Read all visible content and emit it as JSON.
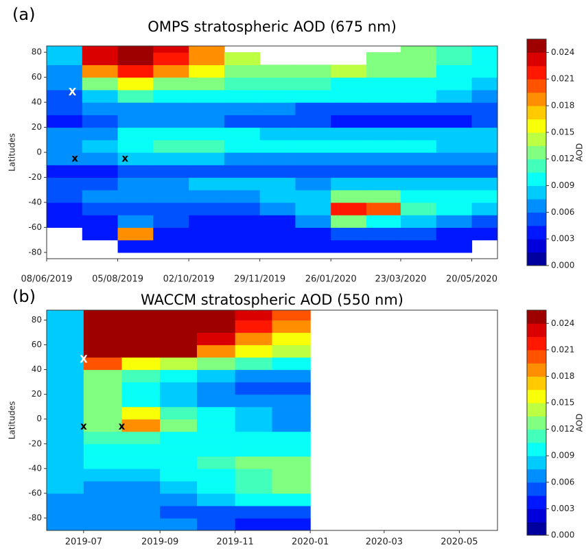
{
  "chart_data": [
    {
      "type": "heatmap",
      "panel_label": "(a)",
      "title": "OMPS stratospheric AOD (675 nm)",
      "ylabel": "Latitudes",
      "x": [
        "08/06/2019",
        "07/07/2019",
        "05/08/2019",
        "03/09/2019",
        "02/10/2019",
        "31/10/2019",
        "29/11/2019",
        "28/12/2019",
        "26/01/2020",
        "24/02/2020",
        "23/03/2020",
        "21/04/2020",
        "20/05/2020"
      ],
      "y": [
        -85,
        -75,
        -65,
        -55,
        -45,
        -35,
        -25,
        -15,
        -5,
        5,
        15,
        25,
        35,
        45,
        55,
        65,
        75,
        85
      ],
      "values": [
        [
          null,
          null,
          null,
          null,
          null,
          null,
          null,
          null,
          null,
          null,
          null,
          null,
          null
        ],
        [
          null,
          null,
          0.004,
          0.003,
          0.003,
          0.003,
          0.003,
          0.003,
          0.003,
          0.004,
          0.003,
          0.003,
          null
        ],
        [
          null,
          0.004,
          0.018,
          0.004,
          0.004,
          0.004,
          0.004,
          0.004,
          0.005,
          0.005,
          0.005,
          0.004,
          0.004
        ],
        [
          0.003,
          0.004,
          0.006,
          0.005,
          0.004,
          0.004,
          0.004,
          0.006,
          0.012,
          0.01,
          0.008,
          0.006,
          0.005
        ],
        [
          0.004,
          0.005,
          0.005,
          0.005,
          0.005,
          0.005,
          0.006,
          0.008,
          0.021,
          0.02,
          0.011,
          0.009,
          0.008
        ],
        [
          0.005,
          0.006,
          0.006,
          0.006,
          0.007,
          0.007,
          0.008,
          0.008,
          0.013,
          0.012,
          0.01,
          0.009,
          0.009
        ],
        [
          0.005,
          0.005,
          0.006,
          0.007,
          0.008,
          0.008,
          0.008,
          0.007,
          0.008,
          0.008,
          0.008,
          0.008,
          0.008
        ],
        [
          0.004,
          0.004,
          0.005,
          0.005,
          0.005,
          0.005,
          0.005,
          0.005,
          0.005,
          0.005,
          0.005,
          0.005,
          0.005
        ],
        [
          0.006,
          0.006,
          0.008,
          0.008,
          0.008,
          0.007,
          0.007,
          0.007,
          0.007,
          0.007,
          0.007,
          0.007,
          0.007
        ],
        [
          0.007,
          0.008,
          0.01,
          0.011,
          0.011,
          0.01,
          0.009,
          0.009,
          0.009,
          0.009,
          0.009,
          0.008,
          0.008
        ],
        [
          0.006,
          0.007,
          0.009,
          0.01,
          0.01,
          0.009,
          0.008,
          0.008,
          0.008,
          0.008,
          0.008,
          0.008,
          0.008
        ],
        [
          0.004,
          0.005,
          0.006,
          0.006,
          0.006,
          0.005,
          0.005,
          0.005,
          0.004,
          0.004,
          0.004,
          0.004,
          0.005
        ],
        [
          0.005,
          0.006,
          0.007,
          0.007,
          0.006,
          0.006,
          0.006,
          0.005,
          0.005,
          0.005,
          0.005,
          0.005,
          0.005
        ],
        [
          0.005,
          0.008,
          0.011,
          0.01,
          0.009,
          0.009,
          0.009,
          0.009,
          0.009,
          0.009,
          0.009,
          0.008,
          0.007
        ],
        [
          0.006,
          0.012,
          0.015,
          0.013,
          0.012,
          0.011,
          0.011,
          0.011,
          0.01,
          0.01,
          0.01,
          0.009,
          0.008
        ],
        [
          0.007,
          0.019,
          0.021,
          0.019,
          0.016,
          0.013,
          0.012,
          0.012,
          0.014,
          0.012,
          0.012,
          0.01,
          0.009
        ],
        [
          0.008,
          0.023,
          0.024,
          0.022,
          0.018,
          0.014,
          null,
          null,
          null,
          0.013,
          0.013,
          0.011,
          0.009
        ],
        [
          0.008,
          0.023,
          0.024,
          0.023,
          0.018,
          null,
          null,
          null,
          null,
          null,
          0.013,
          0.011,
          0.009
        ]
      ],
      "xlim": [
        "08/06/2019",
        "10/06/2020"
      ],
      "xticks": [
        "08/06/2019",
        "05/08/2019",
        "02/10/2019",
        "29/11/2019",
        "26/01/2020",
        "23/03/2020",
        "20/05/2020"
      ],
      "ylim": [
        -85,
        85
      ],
      "yticks": [
        -80,
        -60,
        -40,
        -20,
        0,
        20,
        40,
        60,
        80
      ],
      "colormap": "jet",
      "levels": 17,
      "clim": [
        0,
        0.0255
      ],
      "colorbar": {
        "label": "AOD",
        "ticks": [
          {
            "value": 0,
            "label": "0.000"
          },
          0.003,
          0.006,
          0.009,
          0.012,
          0.015,
          0.018,
          0.021,
          0.024
        ]
      },
      "annotations": [
        {
          "text": "X",
          "x": "29/06/2019",
          "y": 48,
          "color": "#ffffff"
        },
        {
          "text": "x",
          "x": "01/07/2019",
          "y": -5,
          "color": "#000000"
        },
        {
          "text": "x",
          "x": "11/08/2019",
          "y": -5,
          "color": "#000000"
        }
      ]
    },
    {
      "type": "heatmap",
      "panel_label": "(b)",
      "title": "WACCM stratospheric AOD (550 nm)",
      "ylabel": "Latitudes",
      "x": [
        "2019-06",
        "2019-07",
        "2019-08",
        "2019-09",
        "2019-10",
        "2019-11",
        "2019-12"
      ],
      "x_end": "2020-01",
      "y": [
        -85,
        -75,
        -65,
        -55,
        -45,
        -35,
        -25,
        -15,
        -5,
        5,
        15,
        25,
        35,
        45,
        55,
        65,
        75,
        85
      ],
      "values": [
        [
          0.006,
          0.006,
          0.006,
          0.006,
          0.005,
          0.004,
          0.004
        ],
        [
          0.006,
          0.006,
          0.006,
          0.005,
          0.005,
          0.005,
          0.005
        ],
        [
          0.007,
          0.006,
          0.006,
          0.007,
          0.008,
          0.009,
          0.01
        ],
        [
          0.008,
          0.007,
          0.007,
          0.008,
          0.009,
          0.011,
          0.012
        ],
        [
          0.008,
          0.008,
          0.008,
          0.009,
          0.01,
          0.011,
          0.012
        ],
        [
          0.008,
          0.009,
          0.009,
          0.01,
          0.011,
          0.012,
          0.012
        ],
        [
          0.008,
          0.01,
          0.01,
          0.01,
          0.01,
          0.01,
          0.01
        ],
        [
          0.008,
          0.011,
          0.011,
          0.009,
          0.009,
          0.009,
          0.009
        ],
        [
          0.008,
          0.013,
          0.019,
          0.012,
          0.009,
          0.008,
          0.007
        ],
        [
          0.008,
          0.013,
          0.016,
          0.011,
          0.009,
          0.008,
          0.007
        ],
        [
          0.008,
          0.012,
          0.01,
          0.008,
          0.007,
          0.006,
          0.006
        ],
        [
          0.008,
          0.012,
          0.01,
          0.008,
          0.006,
          0.005,
          0.005
        ],
        [
          0.008,
          0.013,
          0.011,
          0.01,
          0.008,
          0.007,
          0.007
        ],
        [
          0.008,
          0.02,
          0.015,
          0.014,
          0.012,
          0.011,
          0.01
        ],
        [
          0.008,
          0.025,
          0.025,
          0.025,
          0.018,
          0.015,
          0.014
        ],
        [
          0.008,
          0.025,
          0.025,
          0.025,
          0.023,
          0.018,
          0.016
        ],
        [
          0.008,
          0.025,
          0.025,
          0.025,
          0.025,
          0.022,
          0.019
        ],
        [
          0.008,
          0.025,
          0.025,
          0.025,
          0.025,
          0.023,
          0.02
        ]
      ],
      "xlim": [
        "2019-06",
        "2020-06"
      ],
      "xticks": [
        "2019-07",
        "2019-09",
        "2019-11",
        "2020-01",
        "2020-03",
        "2020-05"
      ],
      "ylim": [
        -90,
        88
      ],
      "yticks": [
        -80,
        -60,
        -40,
        -20,
        0,
        20,
        40,
        60,
        80
      ],
      "colormap": "jet",
      "levels": 17,
      "clim": [
        0,
        0.0255
      ],
      "colorbar": {
        "label": "AOD",
        "ticks": [
          {
            "value": 0,
            "label": "0.000"
          },
          0.003,
          0.006,
          0.009,
          0.012,
          0.015,
          0.018,
          0.021,
          0.024
        ]
      },
      "annotations": [
        {
          "text": "X",
          "x": "2019-07",
          "y": 48,
          "color": "#ffffff"
        },
        {
          "text": "x",
          "x": "2019-07",
          "y": -6,
          "color": "#000000"
        },
        {
          "text": "x",
          "x": "2019-08",
          "y": -6,
          "color": "#000000"
        }
      ]
    }
  ]
}
